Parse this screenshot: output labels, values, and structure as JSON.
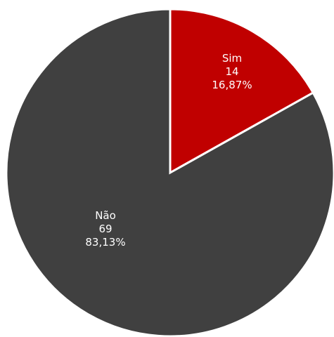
{
  "chart_data": {
    "type": "pie",
    "slices": [
      {
        "label": "Sim",
        "value": 14,
        "percent_label": "16,87%",
        "color": "#c00000"
      },
      {
        "label": "Não",
        "value": 69,
        "percent_label": "83,13%",
        "color": "#404040"
      }
    ],
    "legend": "none",
    "start_angle": "12 o'clock",
    "direction": "clockwise"
  }
}
